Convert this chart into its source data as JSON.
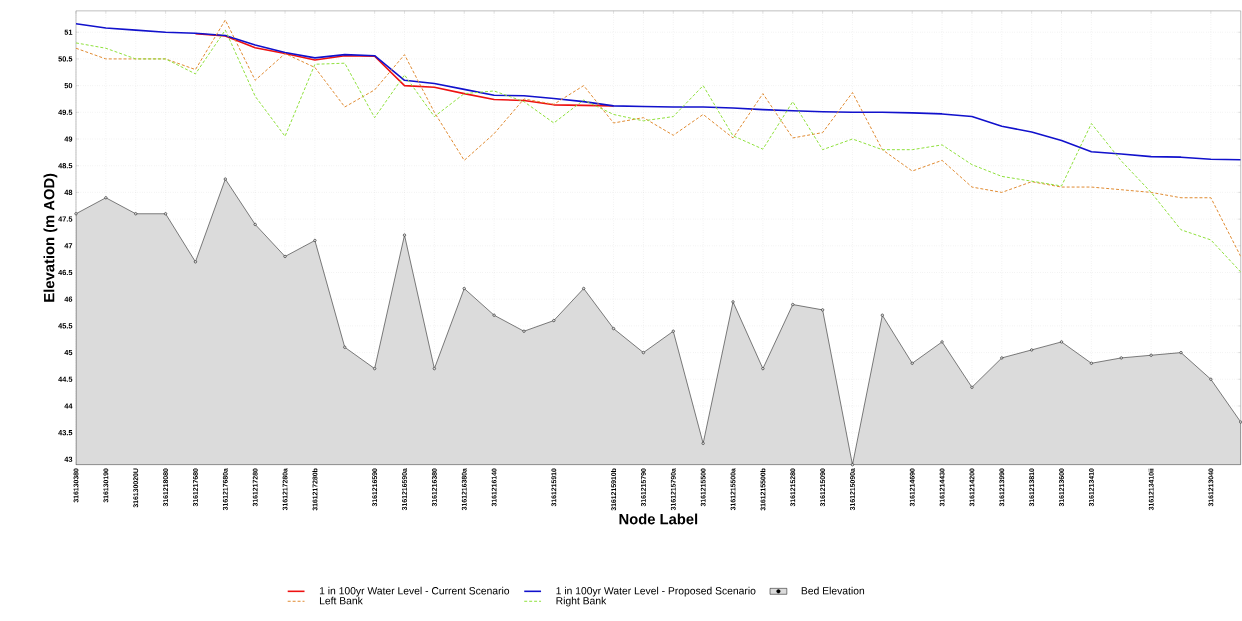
{
  "chart_data": {
    "type": "line",
    "xlabel": "Node Label",
    "ylabel": "Elevation (m AOD)",
    "categories": [
      "316130380",
      "316130190",
      "316130020U",
      "3161218080",
      "3161217680",
      "3161217680a",
      "3161217280",
      "3161217280a",
      "3161217280b",
      null,
      "3161216590",
      "3161216590a",
      "3161216380",
      "3161216380a",
      "3161216140",
      null,
      "3161215910",
      null,
      "3161215910b",
      "3161215790",
      "3161215790a",
      "3161215500",
      "3161215500a",
      "3161215500b",
      "3161215280",
      "3161215090",
      "3161215090a",
      null,
      "3161214690",
      "3161214430",
      "3161214200",
      "3161213990",
      "3161213810",
      "3161213600",
      "3161213410",
      null,
      "3161213410ii",
      null,
      "3161213040",
      null
    ],
    "ylim": [
      42.9,
      51.4
    ],
    "yticks": [
      43,
      43.5,
      44,
      44.5,
      45,
      45.5,
      46,
      46.5,
      47,
      47.5,
      48,
      48.5,
      49,
      49.5,
      50,
      50.5,
      51
    ],
    "grid": true,
    "legend": "bottom",
    "series": [
      {
        "name": "1 in 100yr Water Level - Current Scenario",
        "color": "#ee1111",
        "line_style": "solid",
        "marker": "none",
        "values": [
          null,
          null,
          null,
          null,
          50.97,
          50.93,
          50.71,
          50.6,
          50.48,
          50.56,
          50.55,
          50.0,
          49.97,
          49.85,
          49.74,
          49.72,
          49.64,
          49.63,
          49.62,
          null,
          null,
          null,
          null,
          null,
          null,
          null,
          null,
          null,
          null,
          null,
          null,
          null,
          null,
          null,
          null,
          null,
          null,
          null,
          null,
          null
        ]
      },
      {
        "name": "1 in 100yr Water Level - Proposed Scenario",
        "color": "#1111cc",
        "line_style": "solid",
        "marker": "none",
        "values": [
          51.16,
          51.08,
          51.04,
          51.0,
          50.98,
          50.94,
          50.76,
          50.62,
          50.52,
          50.58,
          50.56,
          50.1,
          50.04,
          49.93,
          49.82,
          49.81,
          49.76,
          49.7,
          49.62,
          49.61,
          49.6,
          49.6,
          49.58,
          49.55,
          49.53,
          49.51,
          49.5,
          49.5,
          49.49,
          49.47,
          49.42,
          49.24,
          49.13,
          48.97,
          48.76,
          48.72,
          48.67,
          48.66,
          48.62,
          48.61
        ]
      },
      {
        "name": "Bed Elevation",
        "type": "area",
        "color": "#000000",
        "line_style": "solid",
        "marker": "circle",
        "values": [
          47.6,
          47.9,
          47.6,
          47.6,
          46.7,
          48.25,
          47.4,
          46.8,
          47.1,
          45.1,
          44.7,
          47.2,
          44.7,
          46.2,
          45.7,
          45.4,
          45.6,
          46.2,
          45.45,
          45.0,
          45.4,
          43.3,
          45.95,
          44.7,
          45.9,
          45.8,
          42.9,
          45.7,
          44.8,
          45.2,
          44.35,
          44.9,
          45.05,
          45.2,
          44.8,
          44.9,
          44.95,
          45.0,
          44.5,
          43.7
        ]
      },
      {
        "name": "Left Bank",
        "color": "#e08a30",
        "line_style": "dashed",
        "marker": "none",
        "values": [
          50.7,
          50.5,
          50.5,
          50.5,
          50.3,
          51.23,
          50.1,
          50.6,
          50.34,
          49.6,
          49.92,
          50.58,
          49.5,
          48.6,
          49.1,
          49.75,
          49.65,
          50.0,
          49.3,
          49.4,
          49.07,
          49.46,
          49.02,
          49.85,
          49.02,
          49.12,
          49.87,
          48.8,
          48.4,
          48.6,
          48.1,
          48.0,
          48.2,
          48.1,
          48.1,
          48.05,
          48.0,
          47.9,
          47.9,
          46.8
        ]
      },
      {
        "name": "Right Bank",
        "color": "#8ee03a",
        "line_style": "dashed",
        "marker": "none",
        "values": [
          50.8,
          50.7,
          50.5,
          50.5,
          50.22,
          51.04,
          49.8,
          49.05,
          50.4,
          50.42,
          49.4,
          50.2,
          49.42,
          49.85,
          49.9,
          49.7,
          49.3,
          49.73,
          49.46,
          49.34,
          49.42,
          50.0,
          49.06,
          48.81,
          49.7,
          48.8,
          49.0,
          48.8,
          48.8,
          48.89,
          48.52,
          48.3,
          48.21,
          48.12,
          49.29,
          48.59,
          48.0,
          47.3,
          47.11,
          46.51
        ]
      }
    ]
  }
}
